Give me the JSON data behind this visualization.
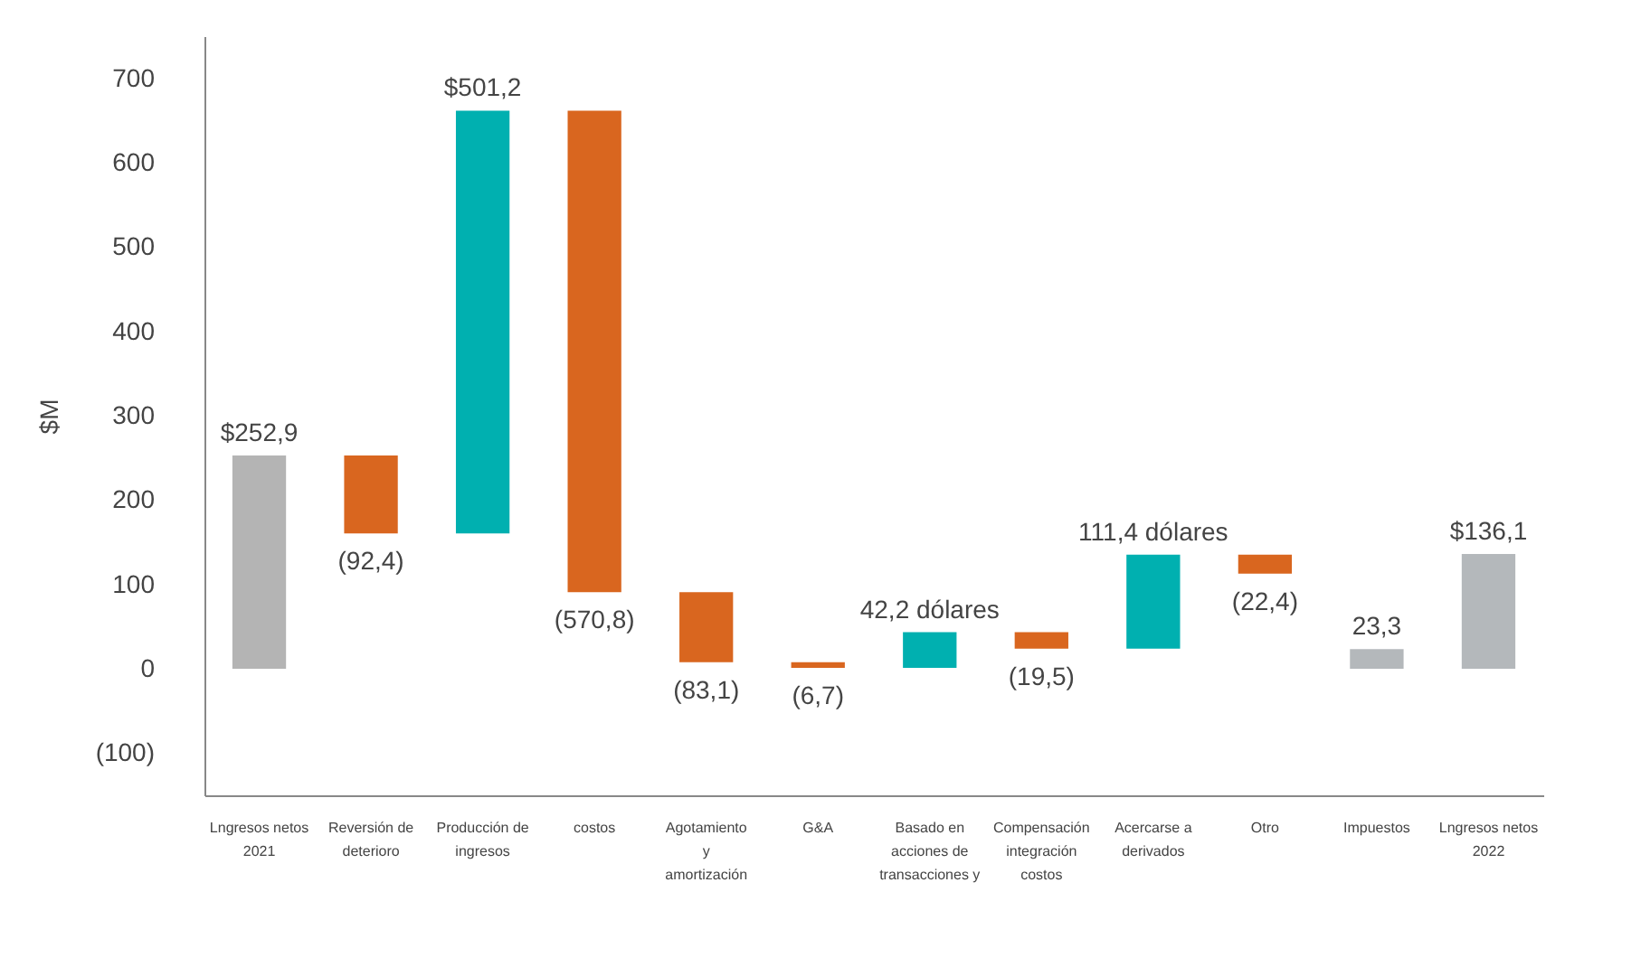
{
  "chart_data": {
    "type": "bar",
    "ylabel": "$M",
    "categories": [
      "Lngresos netos\n2021",
      "Reversión de\ndeterioro",
      "Producción de\ningresos",
      "costos",
      "Agotamiento\ny\namortización",
      "G&A",
      "Basado en\nacciones de\ntransacciones y",
      "Compensación\nintegración\ncostos",
      "Acercarse a\nderivados",
      "Otro",
      "Impuestos",
      "Lngresos netos\n2022"
    ],
    "base": [
      0,
      252.9,
      160.5,
      661.7,
      90.9,
      7.8,
      1.1,
      43.3,
      23.8,
      135.2,
      0,
      0
    ],
    "values": [
      252.9,
      -92.4,
      501.2,
      -570.8,
      -83.1,
      -6.7,
      42.2,
      -19.5,
      111.4,
      -22.4,
      23.3,
      136.1
    ],
    "colors": [
      "#b4b4b4",
      "#d9661f",
      "#00b0b0",
      "#d9661f",
      "#d9661f",
      "#d9661f",
      "#00b0b0",
      "#d9661f",
      "#00b0b0",
      "#d9661f",
      "#b4b8bb",
      "#b4b8bb"
    ],
    "value_labels": [
      "$252,9",
      "(92,4)",
      "$501,2",
      "(570,8)",
      "(83,1)",
      "(6,7)",
      "42,2 dólares",
      "(19,5)",
      "111,4 dólares",
      "(22,4)",
      "23,3",
      "$136,1"
    ],
    "ylim": [
      -150,
      750
    ],
    "yticks": [
      {
        "value": -100,
        "label": "(100)"
      },
      0,
      100,
      200,
      300,
      400,
      500,
      600,
      700
    ]
  }
}
